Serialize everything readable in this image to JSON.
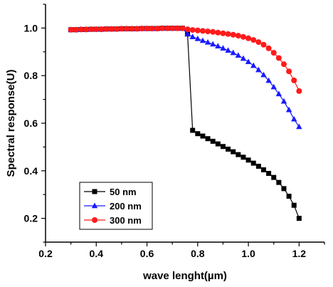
{
  "chart_data": {
    "type": "line",
    "xlabel": "wave lenght(µm)",
    "ylabel": "Spectral response(U)",
    "xlim": [
      0.2,
      1.3
    ],
    "ylim": [
      0.1,
      1.1
    ],
    "x_ticks": [
      "0.2",
      "0.4",
      "0.6",
      "0.8",
      "1.0",
      "1.2"
    ],
    "y_ticks": [
      "0.2",
      "0.4",
      "0.6",
      "0.8",
      "1.0"
    ],
    "legend_position": "bottom-left",
    "series": [
      {
        "name": "50 nm",
        "color": "#000000",
        "marker": "square",
        "x": [
          0.3,
          0.32,
          0.34,
          0.36,
          0.38,
          0.4,
          0.42,
          0.44,
          0.46,
          0.48,
          0.5,
          0.52,
          0.54,
          0.56,
          0.58,
          0.6,
          0.62,
          0.64,
          0.66,
          0.68,
          0.7,
          0.72,
          0.74,
          0.76,
          0.78,
          0.8,
          0.82,
          0.84,
          0.86,
          0.88,
          0.9,
          0.92,
          0.94,
          0.96,
          0.98,
          1.0,
          1.02,
          1.04,
          1.06,
          1.08,
          1.1,
          1.12,
          1.14,
          1.16,
          1.18,
          1.2
        ],
        "y": [
          0.993,
          0.993,
          0.994,
          0.994,
          0.995,
          0.995,
          0.995,
          0.996,
          0.996,
          0.996,
          0.997,
          0.997,
          0.997,
          0.997,
          0.998,
          0.998,
          0.998,
          0.998,
          0.999,
          0.999,
          0.999,
          0.999,
          0.999,
          0.975,
          0.57,
          0.556,
          0.546,
          0.535,
          0.524,
          0.513,
          0.502,
          0.491,
          0.48,
          0.468,
          0.457,
          0.445,
          0.432,
          0.419,
          0.404,
          0.389,
          0.372,
          0.351,
          0.325,
          0.293,
          0.255,
          0.2
        ]
      },
      {
        "name": "200 nm",
        "color": "#1a1aff",
        "marker": "triangle",
        "x": [
          0.3,
          0.32,
          0.34,
          0.36,
          0.38,
          0.4,
          0.42,
          0.44,
          0.46,
          0.48,
          0.5,
          0.52,
          0.54,
          0.56,
          0.58,
          0.6,
          0.62,
          0.64,
          0.66,
          0.68,
          0.7,
          0.72,
          0.74,
          0.76,
          0.78,
          0.8,
          0.82,
          0.84,
          0.86,
          0.88,
          0.9,
          0.92,
          0.94,
          0.96,
          0.98,
          1.0,
          1.02,
          1.04,
          1.06,
          1.08,
          1.1,
          1.12,
          1.14,
          1.16,
          1.18,
          1.2
        ],
        "y": [
          0.993,
          0.993,
          0.994,
          0.994,
          0.995,
          0.995,
          0.995,
          0.996,
          0.996,
          0.996,
          0.997,
          0.997,
          0.997,
          0.997,
          0.998,
          0.998,
          0.998,
          0.998,
          0.999,
          0.999,
          0.999,
          0.999,
          0.999,
          0.975,
          0.963,
          0.955,
          0.947,
          0.94,
          0.932,
          0.924,
          0.915,
          0.906,
          0.896,
          0.885,
          0.872,
          0.858,
          0.842,
          0.824,
          0.803,
          0.779,
          0.752,
          0.723,
          0.692,
          0.656,
          0.617,
          0.585
        ]
      },
      {
        "name": "300 nm",
        "color": "#ff1a1a",
        "marker": "circle",
        "x": [
          0.3,
          0.32,
          0.34,
          0.36,
          0.38,
          0.4,
          0.42,
          0.44,
          0.46,
          0.48,
          0.5,
          0.52,
          0.54,
          0.56,
          0.58,
          0.6,
          0.62,
          0.64,
          0.66,
          0.68,
          0.7,
          0.72,
          0.74,
          0.76,
          0.78,
          0.8,
          0.82,
          0.84,
          0.86,
          0.88,
          0.9,
          0.92,
          0.94,
          0.96,
          0.98,
          1.0,
          1.02,
          1.04,
          1.06,
          1.08,
          1.1,
          1.12,
          1.14,
          1.16,
          1.18,
          1.2
        ],
        "y": [
          0.993,
          0.993,
          0.994,
          0.994,
          0.995,
          0.995,
          0.995,
          0.996,
          0.996,
          0.996,
          0.997,
          0.997,
          0.997,
          0.997,
          0.998,
          0.998,
          0.998,
          0.998,
          0.999,
          0.999,
          0.999,
          0.999,
          0.999,
          0.995,
          0.992,
          0.99,
          0.988,
          0.986,
          0.984,
          0.981,
          0.978,
          0.975,
          0.972,
          0.968,
          0.963,
          0.957,
          0.95,
          0.941,
          0.93,
          0.915,
          0.896,
          0.874,
          0.848,
          0.818,
          0.78,
          0.735
        ]
      }
    ]
  }
}
